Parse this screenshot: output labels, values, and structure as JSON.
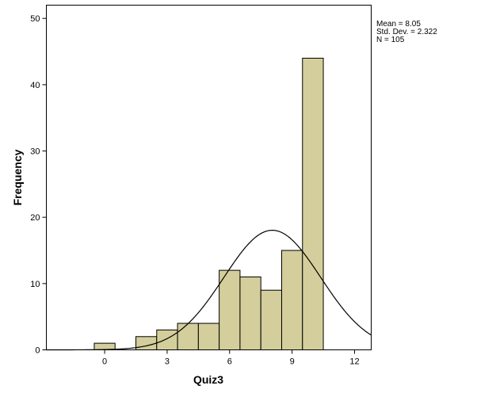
{
  "chart_data": {
    "type": "bar",
    "subtype": "histogram",
    "xlabel": "Quiz3",
    "ylabel": "Frequency",
    "xlim": [
      -2.8,
      12.8
    ],
    "ylim": [
      0,
      52
    ],
    "x_ticks": [
      0,
      3,
      6,
      9,
      12
    ],
    "y_ticks": [
      0,
      10,
      20,
      30,
      40,
      50
    ],
    "bin_width": 1,
    "bins": [
      {
        "start": -0.5,
        "end": 0.5,
        "count": 1
      },
      {
        "start": 0.5,
        "end": 1.5,
        "count": 0
      },
      {
        "start": 1.5,
        "end": 2.5,
        "count": 2
      },
      {
        "start": 2.5,
        "end": 3.5,
        "count": 3
      },
      {
        "start": 3.5,
        "end": 4.5,
        "count": 4
      },
      {
        "start": 4.5,
        "end": 5.5,
        "count": 4
      },
      {
        "start": 5.5,
        "end": 6.5,
        "count": 12
      },
      {
        "start": 6.5,
        "end": 7.5,
        "count": 11
      },
      {
        "start": 7.5,
        "end": 8.5,
        "count": 9
      },
      {
        "start": 8.5,
        "end": 9.5,
        "count": 15
      },
      {
        "start": 9.5,
        "end": 10.5,
        "count": 44
      }
    ],
    "normal_curve": {
      "mean": 8.05,
      "sd": 2.322,
      "n": 105
    },
    "grid": false,
    "colors": {
      "bar_fill": "#d3ce9b",
      "bar_stroke": "#000000",
      "curve": "#000000"
    }
  },
  "stats_box": {
    "mean_text": "Mean = 8.05",
    "sd_text": "Std. Dev. = 2.322",
    "n_text": "N = 105"
  }
}
